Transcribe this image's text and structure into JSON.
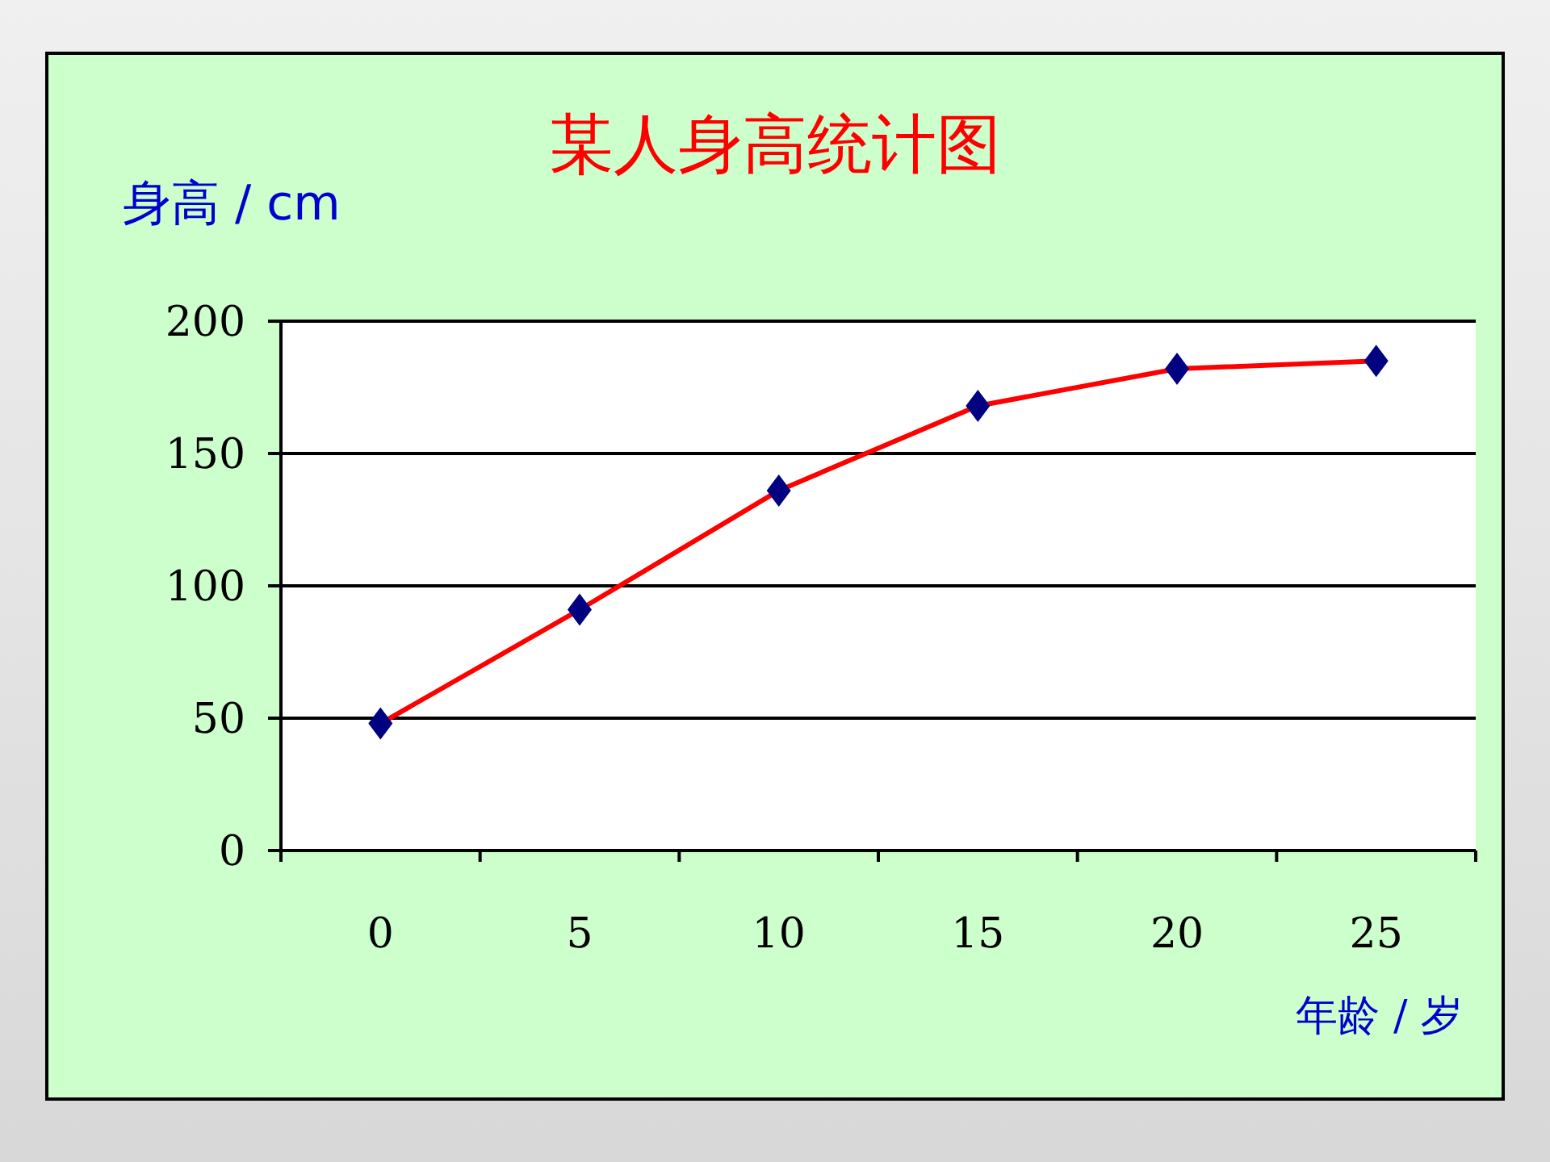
{
  "chart_data": {
    "type": "line",
    "title": "某人身高统计图",
    "ylabel": "身高 / cm",
    "xlabel": "年龄 / 岁",
    "categories": [
      "0",
      "5",
      "10",
      "15",
      "20",
      "25"
    ],
    "series": [
      {
        "color": "#ff0000",
        "values": [
          48,
          91,
          136,
          168,
          182,
          185
        ]
      }
    ],
    "ylim": [
      0,
      200
    ],
    "yticks": [
      0,
      50,
      100,
      150,
      200
    ],
    "grid": "y",
    "marker": "diamond",
    "legend": false
  }
}
